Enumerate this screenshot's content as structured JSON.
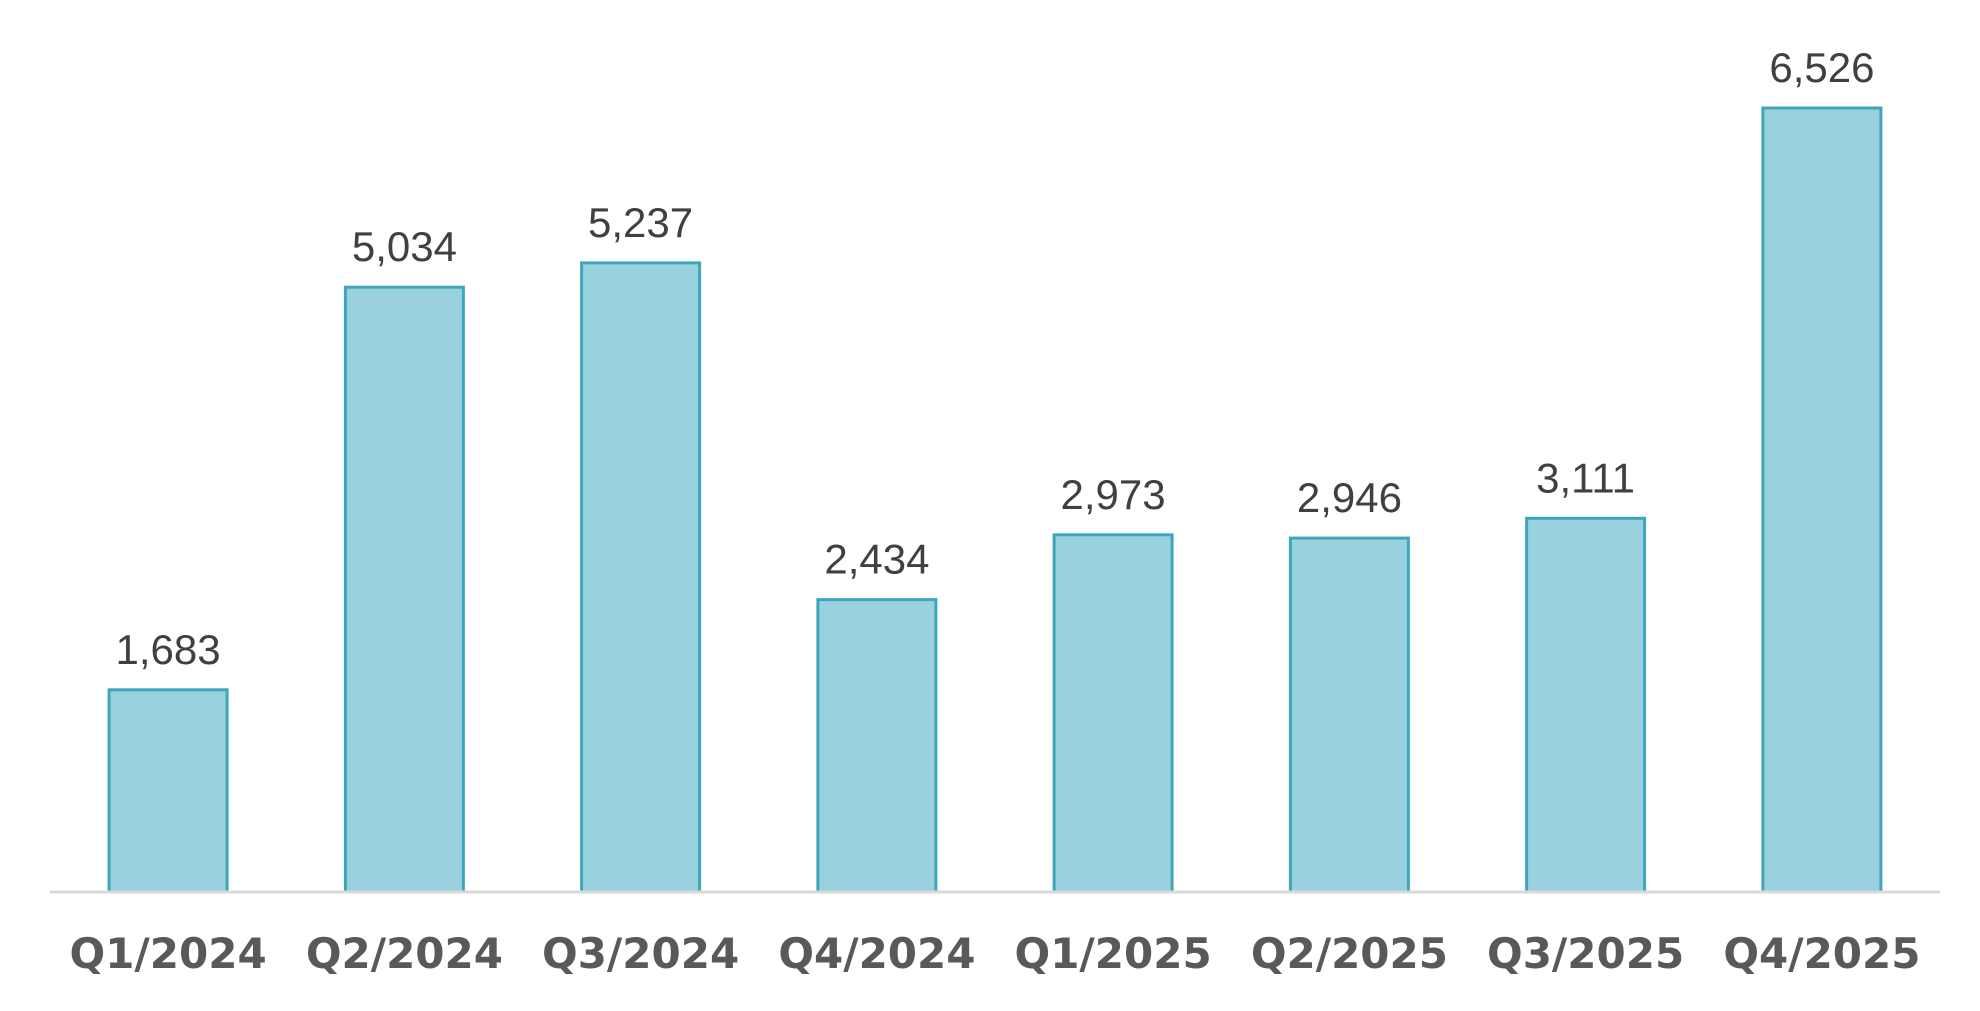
{
  "chart_data": {
    "type": "bar",
    "title": "",
    "xlabel": "",
    "ylabel": "",
    "categories": [
      "Q1/2024",
      "Q2/2024",
      "Q3/2024",
      "Q4/2024",
      "Q1/2025",
      "Q2/2025",
      "Q3/2025",
      "Q4/2025"
    ],
    "values": [
      1683,
      5034,
      5237,
      2434,
      2973,
      2946,
      3111,
      6526
    ],
    "value_labels": [
      "1,683",
      "5,034",
      "5,237",
      "2,434",
      "2,973",
      "2,946",
      "3,111",
      "6,526"
    ],
    "ylim": [
      0,
      6526
    ],
    "grid": false,
    "legend": "none",
    "colors": {
      "bar_fill": "#9ad1df",
      "bar_stroke": "#3fa5b9",
      "axis": "#d9d9d9",
      "label_text": "#404040",
      "tick_text": "#595959"
    }
  }
}
